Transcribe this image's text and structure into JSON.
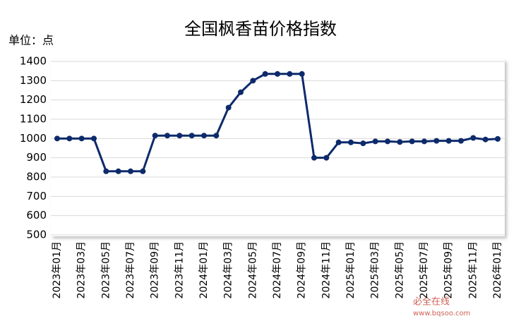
{
  "chart_data": {
    "type": "line",
    "title": "全国枫香苗价格指数",
    "y_label": "单位：点",
    "categories": [
      "2023年01月",
      null,
      "2023年03月",
      null,
      "2023年05月",
      null,
      "2023年07月",
      null,
      "2023年09月",
      null,
      "2023年11月",
      null,
      "2024年01月",
      null,
      "2024年03月",
      null,
      "2024年05月",
      null,
      "2024年07月",
      null,
      "2024年09月",
      null,
      "2024年11月",
      null,
      "2025年01月",
      null,
      "2025年03月",
      null,
      "2025年05月",
      null,
      "2025年07月",
      null,
      "2025年09月",
      null,
      "2025年11月",
      null,
      "2026年01月"
    ],
    "series": [
      {
        "color": "#0d2a6b",
        "values": [
          1000,
          1000,
          1000,
          1000,
          830,
          830,
          830,
          830,
          1015,
          1015,
          1015,
          1015,
          1015,
          1015,
          1160,
          1240,
          1300,
          1335,
          1335,
          1335,
          1335,
          900,
          900,
          980,
          980,
          975,
          985,
          985,
          982,
          985,
          985,
          988,
          988,
          988,
          1003,
          995,
          998
        ]
      }
    ],
    "ylim": [
      500,
      1400
    ],
    "yticks": [
      500,
      600,
      700,
      800,
      900,
      1000,
      1100,
      1200,
      1300,
      1400
    ],
    "grid": true
  },
  "watermark": [
    "必全在线",
    "www.bqsoo.com"
  ]
}
